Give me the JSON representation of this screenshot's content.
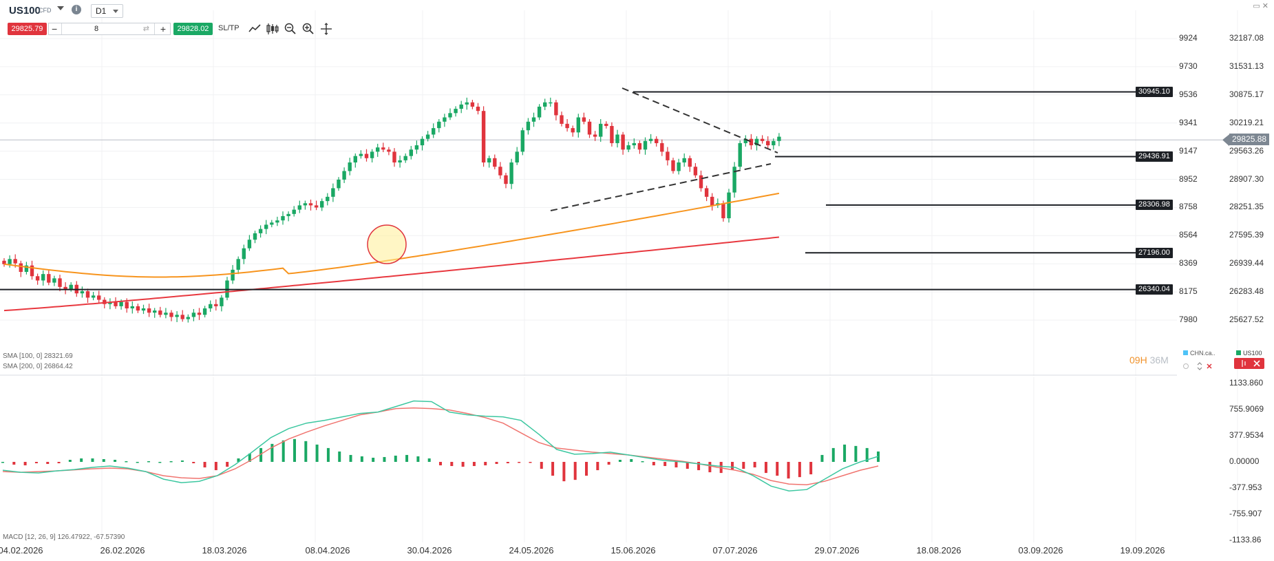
{
  "toolbar": {
    "symbol": "US100",
    "symbol_type": "CFD",
    "info_icon": "i",
    "timeframe": "D1",
    "sell_price": "29825.79",
    "quantity": "8",
    "buy_price": "29828.02",
    "sltp_label": "SL/TP",
    "minus": "−",
    "plus": "+",
    "tools": [
      "line-chart-icon",
      "candle-type-icon",
      "zoom-out-icon",
      "zoom-in-icon",
      "crosshair-icon"
    ],
    "window_controls": "▭ ✕"
  },
  "price_axis": {
    "labels": [
      "9924",
      "9730",
      "9536",
      "9341",
      "9147",
      "8952",
      "8758",
      "8564",
      "8369",
      "8175",
      "7980"
    ],
    "labels_right": [
      "32187.08",
      "31531.13",
      "30875.17",
      "30219.21",
      "29563.26",
      "28907.30",
      "28251.35",
      "27595.39",
      "26939.44",
      "26283.48",
      "25627.52"
    ]
  },
  "current_price": "29825.88",
  "levels": [
    {
      "label": "30945.10",
      "value": 30945.1
    },
    {
      "label": "29436.91",
      "value": 29436.91
    },
    {
      "label": "28306.98",
      "value": 28306.98
    },
    {
      "label": "27196.00",
      "value": 27196.0
    },
    {
      "label": "26340.04",
      "value": 26340.04
    }
  ],
  "sma_labels": {
    "sma100": "SMA [100, 0] 28321.69",
    "sma200": "SMA [200, 0] 26864.42"
  },
  "macd": {
    "label": "MACD [12, 26, 9] 126.47922, -67.57390",
    "axis_labels": [
      "1133.860",
      "755.9069",
      "377.9534",
      "0.00000",
      "-377.953",
      "-755.907",
      "-1133.86"
    ]
  },
  "countdown": {
    "hours": "09H",
    "minutes": "36M"
  },
  "legend": {
    "chn": "CHN.ca..",
    "us": "US100"
  },
  "dates": [
    "04.02.2026",
    "26.02.2026",
    "18.03.2026",
    "08.04.2026",
    "30.04.2026",
    "24.05.2026",
    "15.06.2026",
    "07.07.2026",
    "29.07.2026",
    "18.08.2026",
    "03.09.2026",
    "19.09.2026"
  ],
  "colors": {
    "up": "#1aa864",
    "down": "#e0343d",
    "sma100": "#f7941d",
    "sma200": "#e8383f",
    "macd_line": "#3cc7a0",
    "signal_line": "#f0746f",
    "level_line": "#1c1f24"
  },
  "chart_data": {
    "type": "candlestick",
    "instrument": "US100",
    "timeframe": "D1",
    "candles_close": [
      26930,
      27050,
      26950,
      26750,
      26900,
      26650,
      26550,
      26700,
      26500,
      26600,
      26400,
      26350,
      26450,
      26250,
      26300,
      26150,
      26200,
      26100,
      26000,
      26050,
      25950,
      26050,
      25900,
      25950,
      25850,
      25900,
      25800,
      25850,
      25750,
      25800,
      25700,
      25750,
      25650,
      25700,
      25800,
      25750,
      25900,
      26000,
      25950,
      26150,
      26550,
      26800,
      27050,
      27300,
      27500,
      27650,
      27750,
      27850,
      27900,
      27950,
      28050,
      28100,
      28200,
      28300,
      28350,
      28300,
      28250,
      28400,
      28500,
      28700,
      28900,
      29100,
      29300,
      29450,
      29500,
      29400,
      29550,
      29650,
      29600,
      29550,
      29300,
      29350,
      29450,
      29600,
      29700,
      29850,
      29950,
      30100,
      30250,
      30350,
      30450,
      30550,
      30650,
      30700,
      30600,
      30500,
      29300,
      29400,
      29200,
      29000,
      28800,
      29300,
      29550,
      30050,
      30250,
      30350,
      30600,
      30700,
      30700,
      30400,
      30200,
      30100,
      30000,
      30350,
      30250,
      29950,
      29900,
      30200,
      30150,
      29750,
      29950,
      29600,
      29700,
      29750,
      29600,
      29800,
      29850,
      29750,
      29550,
      29350,
      29100,
      29300,
      29400,
      29200,
      29000,
      28700,
      28500,
      28300,
      28350,
      28000,
      28600,
      29200,
      29750,
      29850,
      29700,
      29850,
      29800,
      29700,
      29800,
      29900
    ],
    "sma100_start": 26930,
    "sma200_start": 25850,
    "macd_hist": [
      0,
      -40,
      -50,
      -20,
      -30,
      -20,
      30,
      50,
      50,
      40,
      30,
      10,
      0,
      10,
      0,
      10,
      20,
      -20,
      -80,
      -120,
      -70,
      50,
      120,
      200,
      260,
      310,
      330,
      300,
      250,
      200,
      150,
      100,
      80,
      60,
      70,
      90,
      100,
      80,
      50,
      -50,
      -60,
      -70,
      -60,
      -50,
      -30,
      -20,
      -10,
      -10,
      -100,
      -200,
      -280,
      -260,
      -200,
      -120,
      -40,
      30,
      40,
      10,
      -50,
      -60,
      -80,
      -100,
      -120,
      -150,
      -160,
      -120,
      -100,
      -80,
      -160,
      -200,
      -240,
      -220,
      -180,
      100,
      200,
      250,
      230,
      200,
      150
    ]
  }
}
